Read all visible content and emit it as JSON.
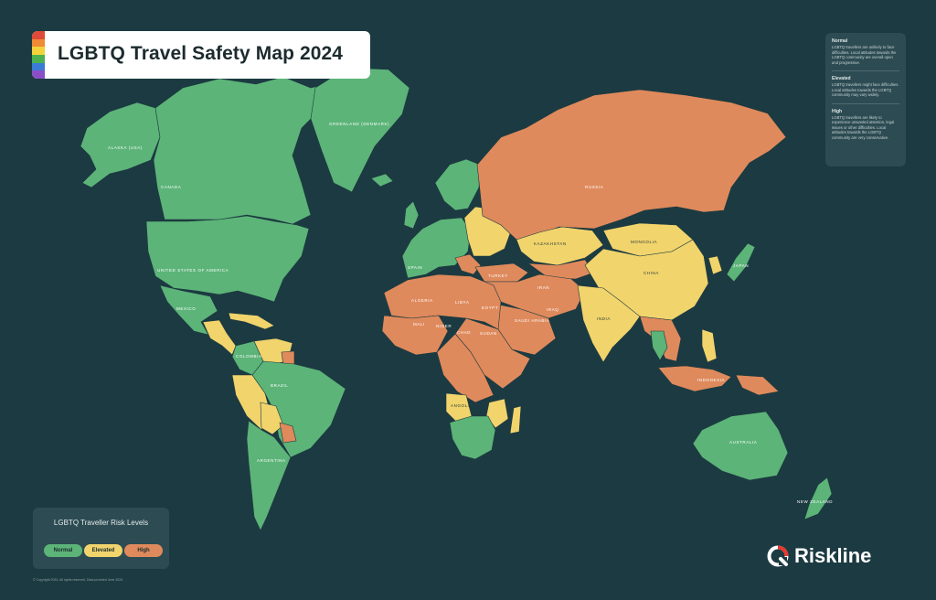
{
  "title": "LGBTQ Travel Safety Map 2024",
  "colors": {
    "background": "#1c3a41",
    "normal": "#5cb478",
    "elevated": "#f1d46c",
    "high": "#df8a5c",
    "rainbow": [
      "#e04a3a",
      "#f08a35",
      "#f4d23c",
      "#4caf50",
      "#3a7bd5",
      "#8a4fc7"
    ]
  },
  "info": {
    "normal_title": "Normal",
    "normal_text": "LGBTQ travellers are unlikely to face difficulties. Local attitudes towards the LGBTQ community are overall open and progressive.",
    "elevated_title": "Elevated",
    "elevated_text": "LGBTQ travellers might face difficulties. Local attitudes towards the LGBTQ community may vary widely.",
    "high_title": "High",
    "high_text": "LGBTQ travellers are likely to experience unwanted attention, legal issues or other difficulties. Local attitudes towards the LGBTQ community are very conservative."
  },
  "legend": {
    "title": "LGBTQ Traveller Risk Levels",
    "normal": "Normal",
    "elevated": "Elevated",
    "high": "High"
  },
  "brand": {
    "name": "Riskline",
    "icon": "riskline-logo-icon"
  },
  "copyright": "© Copyright 2024. All rights reserved. Data provided June 2024.",
  "regions": [
    {
      "id": "alaska",
      "risk": "normal",
      "label": "ALASKA (USA)"
    },
    {
      "id": "canada",
      "risk": "normal",
      "label": "CANADA"
    },
    {
      "id": "greenland",
      "risk": "normal",
      "label": "GREENLAND (DENMARK)"
    },
    {
      "id": "usa",
      "risk": "normal",
      "label": "UNITED STATES OF AMERICA"
    },
    {
      "id": "mexico",
      "risk": "normal",
      "label": "MEXICO"
    },
    {
      "id": "central-america",
      "risk": "elevated",
      "label": ""
    },
    {
      "id": "caribbean",
      "risk": "elevated",
      "label": ""
    },
    {
      "id": "colombia",
      "risk": "normal",
      "label": "COLOMBIA"
    },
    {
      "id": "venezuela-guianas",
      "risk": "elevated",
      "label": ""
    },
    {
      "id": "guyana",
      "risk": "high",
      "label": ""
    },
    {
      "id": "peru",
      "risk": "elevated",
      "label": ""
    },
    {
      "id": "brazil",
      "risk": "normal",
      "label": "BRAZIL"
    },
    {
      "id": "bolivia",
      "risk": "elevated",
      "label": ""
    },
    {
      "id": "paraguay",
      "risk": "high",
      "label": ""
    },
    {
      "id": "argentina-chile",
      "risk": "normal",
      "label": "ARGENTINA"
    },
    {
      "id": "western-europe",
      "risk": "normal",
      "label": "SPAIN"
    },
    {
      "id": "scandinavia",
      "risk": "normal",
      "label": ""
    },
    {
      "id": "uk",
      "risk": "normal",
      "label": ""
    },
    {
      "id": "iceland",
      "risk": "normal",
      "label": ""
    },
    {
      "id": "eastern-europe",
      "risk": "elevated",
      "label": ""
    },
    {
      "id": "balkans",
      "risk": "high",
      "label": ""
    },
    {
      "id": "turkey",
      "risk": "high",
      "label": "TURKEY"
    },
    {
      "id": "russia",
      "risk": "high",
      "label": "RUSSIA"
    },
    {
      "id": "kazakhstan",
      "risk": "elevated",
      "label": "KAZAKHSTAN"
    },
    {
      "id": "central-asia",
      "risk": "high",
      "label": ""
    },
    {
      "id": "mongolia",
      "risk": "elevated",
      "label": "MONGOLIA"
    },
    {
      "id": "china",
      "risk": "elevated",
      "label": "CHINA"
    },
    {
      "id": "korea",
      "risk": "elevated",
      "label": ""
    },
    {
      "id": "japan",
      "risk": "normal",
      "label": "JAPAN"
    },
    {
      "id": "middle-east",
      "risk": "high",
      "label": "IRAN"
    },
    {
      "id": "arabia",
      "risk": "high",
      "label": "SAUDI ARABIA"
    },
    {
      "id": "india",
      "risk": "elevated",
      "label": "INDIA"
    },
    {
      "id": "southeast-asia",
      "risk": "high",
      "label": ""
    },
    {
      "id": "thailand",
      "risk": "normal",
      "label": ""
    },
    {
      "id": "philippines",
      "risk": "elevated",
      "label": ""
    },
    {
      "id": "indonesia",
      "risk": "high",
      "label": "INDONESIA"
    },
    {
      "id": "north-africa",
      "risk": "high",
      "label": "ALGERIA"
    },
    {
      "id": "west-africa",
      "risk": "high",
      "label": ""
    },
    {
      "id": "east-africa",
      "risk": "high",
      "label": ""
    },
    {
      "id": "central-africa",
      "risk": "high",
      "label": ""
    },
    {
      "id": "angola",
      "risk": "elevated",
      "label": "ANGOLA"
    },
    {
      "id": "southern-africa",
      "risk": "normal",
      "label": ""
    },
    {
      "id": "mozambique",
      "risk": "elevated",
      "label": ""
    },
    {
      "id": "madagascar",
      "risk": "elevated",
      "label": ""
    },
    {
      "id": "australia",
      "risk": "normal",
      "label": "AUSTRALIA"
    },
    {
      "id": "new-guinea",
      "risk": "high",
      "label": ""
    },
    {
      "id": "new-zealand",
      "risk": "normal",
      "label": "NEW ZEALAND"
    }
  ],
  "labels": {
    "libya": "LIBYA",
    "egypt": "EGYPT",
    "sudan": "SUDAN",
    "chad": "CHAD",
    "niger": "NIGER",
    "mali": "MALI",
    "iraq": "IRAQ"
  }
}
